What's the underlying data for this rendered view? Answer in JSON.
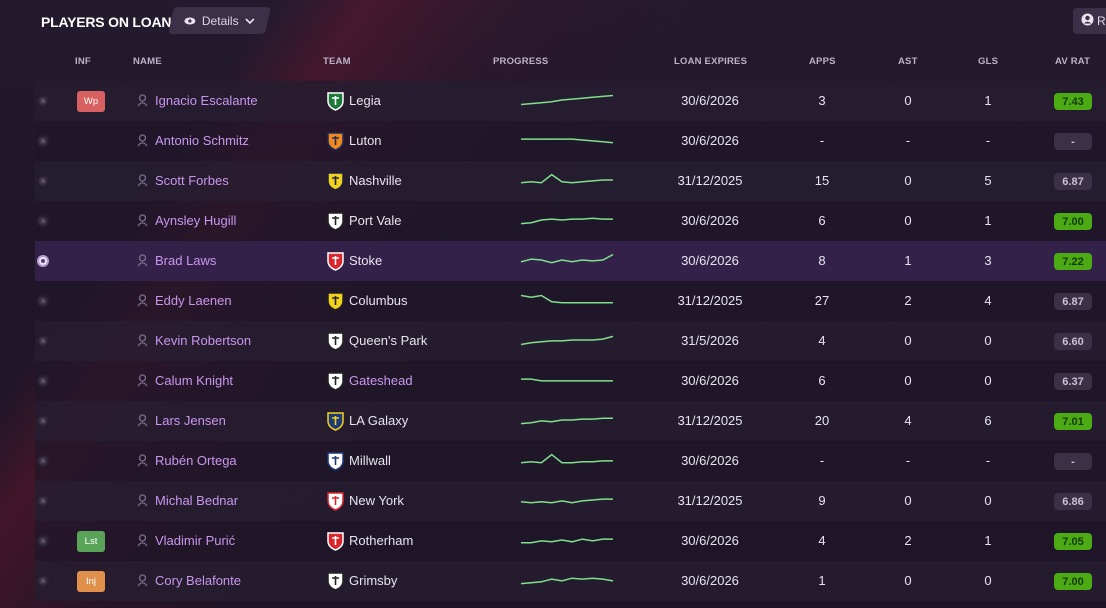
{
  "header": {
    "title": "PLAYERS ON LOAN",
    "details_label": "Details",
    "right_button_label": "R"
  },
  "columns": {
    "inf": "INF",
    "name": "NAME",
    "team": "TEAM",
    "progress": "PROGRESS",
    "loan_expires": "LOAN EXPIRES",
    "apps": "APPS",
    "ast": "AST",
    "gls": "GLS",
    "av_rat": "AV RAT"
  },
  "colors": {
    "accent_purple": "#c996ee",
    "rating_green": "#4caa14",
    "rating_grey": "#3a3146",
    "spark_green": "#7fe08a",
    "badge_red": "#d86060",
    "badge_green": "#5aa45a",
    "badge_orange": "#e0904a"
  },
  "players": [
    {
      "inf": "Wp",
      "inf_color": "#d86060",
      "name": "Ignacio Escalante",
      "team": "Legia",
      "team_icon": "legia-crest-icon",
      "expires": "30/6/2026",
      "apps": "3",
      "ast": "0",
      "gls": "1",
      "rating": "7.43",
      "rating_style": "green",
      "spark": [
        0.25,
        0.3,
        0.35,
        0.4,
        0.5,
        0.55,
        0.6,
        0.65,
        0.7,
        0.75
      ],
      "selected": false
    },
    {
      "inf": "",
      "name": "Antonio Schmitz",
      "team": "Luton",
      "team_icon": "luton-crest-icon",
      "expires": "30/6/2026",
      "apps": "-",
      "ast": "-",
      "gls": "-",
      "rating": "-",
      "rating_style": "grey",
      "spark": [
        0.55,
        0.55,
        0.55,
        0.55,
        0.55,
        0.55,
        0.5,
        0.45,
        0.4,
        0.35
      ],
      "selected": false
    },
    {
      "inf": "",
      "name": "Scott Forbes",
      "team": "Nashville",
      "team_icon": "nashville-crest-icon",
      "expires": "31/12/2025",
      "apps": "15",
      "ast": "0",
      "gls": "5",
      "rating": "6.87",
      "rating_style": "grey",
      "spark": [
        0.35,
        0.4,
        0.35,
        0.8,
        0.4,
        0.35,
        0.4,
        0.45,
        0.5,
        0.5
      ],
      "selected": false
    },
    {
      "inf": "",
      "name": "Aynsley Hugill",
      "team": "Port Vale",
      "team_icon": "portvale-crest-icon",
      "expires": "30/6/2026",
      "apps": "6",
      "ast": "0",
      "gls": "1",
      "rating": "7.00",
      "rating_style": "green",
      "spark": [
        0.3,
        0.35,
        0.5,
        0.55,
        0.5,
        0.55,
        0.55,
        0.6,
        0.55,
        0.55
      ],
      "selected": false
    },
    {
      "inf": "",
      "name": "Brad Laws",
      "team": "Stoke",
      "team_icon": "stoke-crest-icon",
      "expires": "30/6/2026",
      "apps": "8",
      "ast": "1",
      "gls": "3",
      "rating": "7.22",
      "rating_style": "green",
      "spark": [
        0.4,
        0.55,
        0.5,
        0.35,
        0.5,
        0.4,
        0.5,
        0.45,
        0.5,
        0.8
      ],
      "selected": true
    },
    {
      "inf": "",
      "name": "Eddy Laenen",
      "team": "Columbus",
      "team_icon": "columbus-crest-icon",
      "expires": "31/12/2025",
      "apps": "27",
      "ast": "2",
      "gls": "4",
      "rating": "6.87",
      "rating_style": "grey",
      "spark": [
        0.75,
        0.65,
        0.75,
        0.4,
        0.35,
        0.35,
        0.35,
        0.35,
        0.35,
        0.35
      ],
      "selected": false
    },
    {
      "inf": "",
      "name": "Kevin Robertson",
      "team": "Queen's Park",
      "team_icon": "queenspark-crest-icon",
      "expires": "31/5/2026",
      "apps": "4",
      "ast": "0",
      "gls": "0",
      "rating": "6.60",
      "rating_style": "grey",
      "spark": [
        0.25,
        0.35,
        0.4,
        0.45,
        0.45,
        0.5,
        0.5,
        0.5,
        0.55,
        0.7
      ],
      "selected": false
    },
    {
      "inf": "",
      "name": "Calum Knight",
      "team": "Gateshead",
      "team_icon": "gateshead-crest-icon",
      "team_purple": true,
      "expires": "30/6/2026",
      "apps": "6",
      "ast": "0",
      "gls": "0",
      "rating": "6.37",
      "rating_style": "grey",
      "spark": [
        0.55,
        0.55,
        0.45,
        0.45,
        0.45,
        0.45,
        0.45,
        0.45,
        0.45,
        0.45
      ],
      "selected": false
    },
    {
      "inf": "",
      "name": "Lars Jensen",
      "team": "LA Galaxy",
      "team_icon": "lagalaxy-crest-icon",
      "expires": "31/12/2025",
      "apps": "20",
      "ast": "4",
      "gls": "6",
      "rating": "7.01",
      "rating_style": "green",
      "spark": [
        0.3,
        0.35,
        0.45,
        0.4,
        0.5,
        0.5,
        0.55,
        0.55,
        0.6,
        0.6
      ],
      "selected": false
    },
    {
      "inf": "",
      "name": "Rubén Ortega",
      "team": "Millwall",
      "team_icon": "millwall-crest-icon",
      "expires": "30/6/2026",
      "apps": "-",
      "ast": "-",
      "gls": "-",
      "rating": "-",
      "rating_style": "grey",
      "spark": [
        0.35,
        0.4,
        0.35,
        0.8,
        0.35,
        0.35,
        0.4,
        0.4,
        0.45,
        0.45
      ],
      "selected": false
    },
    {
      "inf": "",
      "name": "Michal Bednar",
      "team": "New York",
      "team_icon": "newyork-crest-icon",
      "expires": "31/12/2025",
      "apps": "9",
      "ast": "0",
      "gls": "0",
      "rating": "6.86",
      "rating_style": "grey",
      "spark": [
        0.4,
        0.35,
        0.4,
        0.35,
        0.45,
        0.35,
        0.45,
        0.5,
        0.55,
        0.55
      ],
      "selected": false
    },
    {
      "inf": "Lst",
      "inf_color": "#5aa45a",
      "name": "Vladimir Purić",
      "team": "Rotherham",
      "team_icon": "rotherham-crest-icon",
      "expires": "30/6/2026",
      "apps": "4",
      "ast": "2",
      "gls": "1",
      "rating": "7.05",
      "rating_style": "green",
      "spark": [
        0.35,
        0.35,
        0.45,
        0.4,
        0.5,
        0.4,
        0.55,
        0.45,
        0.55,
        0.55
      ],
      "selected": false
    },
    {
      "inf": "Inj",
      "inf_color": "#e0904a",
      "name": "Cory Belafonte",
      "team": "Grimsby",
      "team_icon": "grimsby-crest-icon",
      "expires": "30/6/2026",
      "apps": "1",
      "ast": "0",
      "gls": "0",
      "rating": "7.00",
      "rating_style": "green",
      "spark": [
        0.3,
        0.35,
        0.4,
        0.55,
        0.45,
        0.6,
        0.55,
        0.6,
        0.55,
        0.45
      ],
      "selected": false
    }
  ]
}
